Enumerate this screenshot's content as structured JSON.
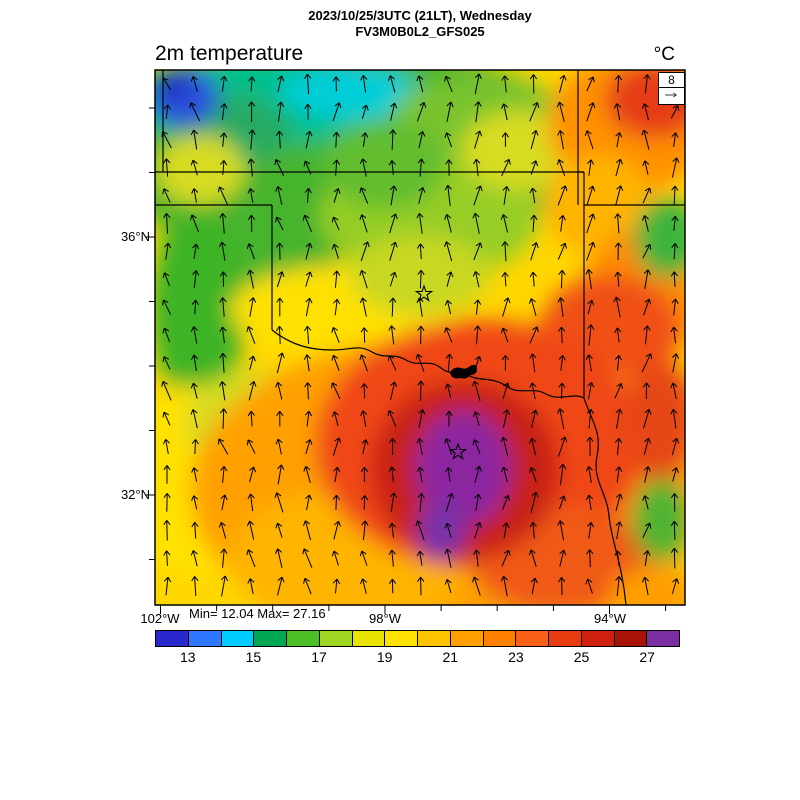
{
  "header": {
    "title_line1": "2023/10/25/3UTC (21LT), Wednesday",
    "title_line2": "FV3M0B0L2_GFS025"
  },
  "map": {
    "variable_label": "2m temperature",
    "unit_label": "°C",
    "reference_vector": {
      "value": "8"
    }
  },
  "axes": {
    "lat_labels": [
      "36°N",
      "32°N"
    ],
    "lon_labels": [
      "102°W",
      "98°W",
      "94°W"
    ]
  },
  "stats": {
    "min_max": "Min= 12.04 Max= 27.16"
  },
  "colorbar": {
    "tick_labels": [
      "13",
      "15",
      "17",
      "19",
      "21",
      "23",
      "25",
      "27"
    ],
    "segment_colors": [
      "#2828cd",
      "#2e78ff",
      "#00ccff",
      "#00a651",
      "#4dbf26",
      "#a0d622",
      "#e8e400",
      "#ffe100",
      "#ffc400",
      "#ffa000",
      "#ff8000",
      "#f86018",
      "#e83c10",
      "#d02010",
      "#a81408",
      "#7a2ea0"
    ]
  },
  "chart_data": {
    "type": "heatmap",
    "title": "2m temperature",
    "units": "°C",
    "valid_time": "2023/10/25/3UTC (21LT), Wednesday",
    "model_run": "FV3M0B0L2_GFS025",
    "min": 12.04,
    "max": 27.16,
    "colorbar_ticks": [
      13,
      15,
      17,
      19,
      21,
      23,
      25,
      27
    ],
    "colorbar_range": [
      12,
      28
    ],
    "lat_ticks": [
      "36°N",
      "32°N"
    ],
    "lon_ticks": [
      "102°W",
      "98°W",
      "94°W"
    ],
    "wind_reference": 8,
    "legend_position": "bottom"
  }
}
